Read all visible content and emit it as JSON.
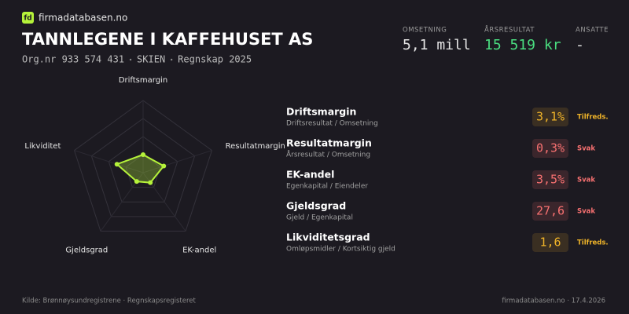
{
  "brand": {
    "logo": "fd",
    "name": "firmadatabasen.no"
  },
  "header": {
    "title": "TANNLEGENE I KAFFEHUSET AS",
    "subtitle": [
      "Org.nr 933 574 431",
      "SKIEN",
      "Regnskap 2025"
    ]
  },
  "stats": [
    {
      "label": "OMSETNING",
      "value": "5,1 mill",
      "color": "#e5e5e5"
    },
    {
      "label": "ÅRSRESULTAT",
      "value": "15 519 kr",
      "color": "#4ade80"
    },
    {
      "label": "ANSATTE",
      "value": "-",
      "color": "#e5e5e5"
    }
  ],
  "radar": {
    "axes": [
      "Driftsmargin",
      "Resultatmargin",
      "EK-andel",
      "Gjeldsgrad",
      "Likviditet"
    ],
    "values": [
      0.25,
      0.3,
      0.17,
      0.15,
      0.38
    ],
    "max": 1,
    "rings": [
      0.25,
      0.5,
      0.75,
      1
    ],
    "color": "#b5f23a"
  },
  "metrics": [
    {
      "name": "Driftsmargin",
      "formula": "Driftsresultat / Omsetning",
      "value": "3,1%",
      "status": "Tilfreds.",
      "color": "#f0b429"
    },
    {
      "name": "Resultatmargin",
      "formula": "Årsresultat / Omsetning",
      "value": "0,3%",
      "status": "Svak",
      "color": "#f87171"
    },
    {
      "name": "EK-andel",
      "formula": "Egenkapital / Eiendeler",
      "value": "3,5%",
      "status": "Svak",
      "color": "#f87171"
    },
    {
      "name": "Gjeldsgrad",
      "formula": "Gjeld / Egenkapital",
      "value": "27,6",
      "status": "Svak",
      "color": "#f87171"
    },
    {
      "name": "Likviditetsgrad",
      "formula": "Omløpsmidler / Kortsiktig gjeld",
      "value": "1,6",
      "status": "Tilfreds.",
      "color": "#f0b429"
    }
  ],
  "footer": {
    "source": "Kilde: Brønnøysundregistrene · Regnskapsregisteret",
    "site": "firmadatabasen.no · 17.4.2026"
  }
}
